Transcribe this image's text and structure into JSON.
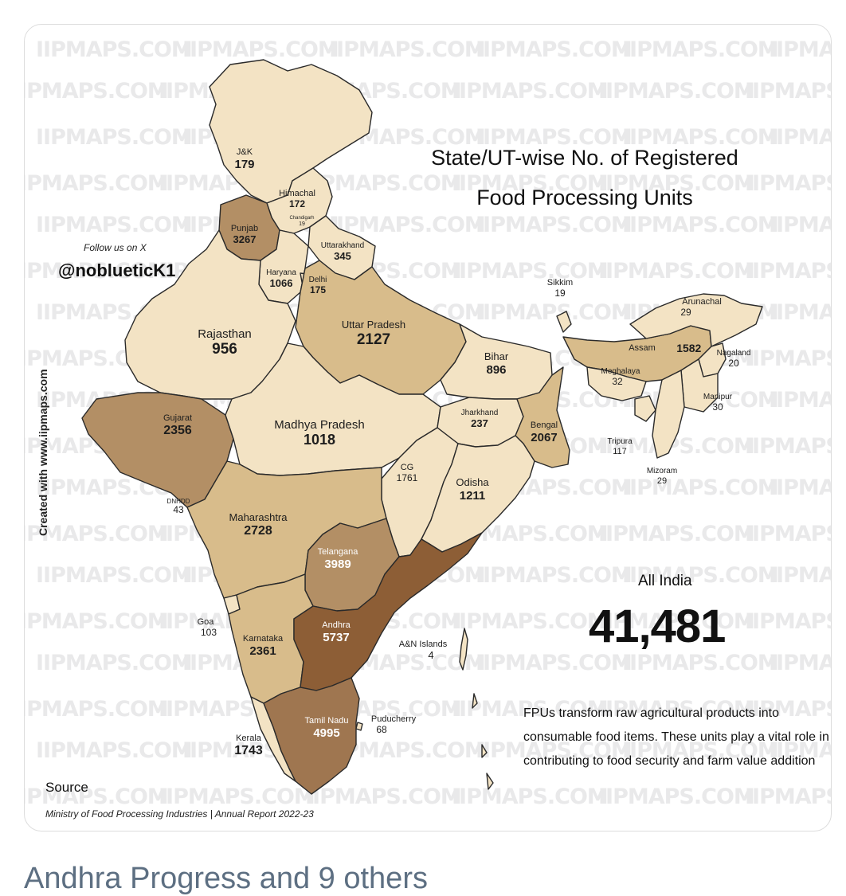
{
  "watermark": "IIPMAPS.COM",
  "title_line1": "State/UT-wise No. of Registered",
  "title_line2": "Food Processing Units",
  "follow_label": "Follow us on X",
  "handle": "@noblueticK1",
  "created_with": "Created with www.iipmaps.com",
  "all_india_label": "All India",
  "all_india_value": "41,481",
  "description": "FPUs transform raw agricultural products into consumable food items. These units play a vital role in contributing to food security and farm value addition",
  "source_label": "Source",
  "source_detail": "Ministry of Food Processing Industries | Annual Report 2022-23",
  "footer_text": "Andhra Progress and 9 others",
  "colors": {
    "lightest": "#f3e3c4",
    "light": "#e5cea2",
    "medium": "#d8bc8b",
    "dark": "#b38f65",
    "darker": "#9f7650",
    "darkest": "#8d5e36",
    "border": "#2a2a2a"
  },
  "states": [
    {
      "name": "J&K",
      "value": "179"
    },
    {
      "name": "Himachal",
      "value": "172"
    },
    {
      "name": "Chandigarh",
      "value": "19"
    },
    {
      "name": "Punjab",
      "value": "3267"
    },
    {
      "name": "Uttarakhand",
      "value": "345"
    },
    {
      "name": "Haryana",
      "value": "1066"
    },
    {
      "name": "Delhi",
      "value": "175"
    },
    {
      "name": "Rajasthan",
      "value": "956"
    },
    {
      "name": "Uttar Pradesh",
      "value": "2127"
    },
    {
      "name": "Sikkim",
      "value": "19"
    },
    {
      "name": "Arunachal",
      "value": "29"
    },
    {
      "name": "Assam",
      "value": "1582"
    },
    {
      "name": "Nagaland",
      "value": "20"
    },
    {
      "name": "Meghalaya",
      "value": "32"
    },
    {
      "name": "Manipur",
      "value": "30"
    },
    {
      "name": "Bihar",
      "value": "896"
    },
    {
      "name": "Jharkhand",
      "value": "237"
    },
    {
      "name": "Bengal",
      "value": "2067"
    },
    {
      "name": "Tripura",
      "value": "117"
    },
    {
      "name": "Mizoram",
      "value": "29"
    },
    {
      "name": "Gujarat",
      "value": "2356"
    },
    {
      "name": "Madhya Pradesh",
      "value": "1018"
    },
    {
      "name": "CG",
      "value": "1761"
    },
    {
      "name": "Odisha",
      "value": "1211"
    },
    {
      "name": "DNHDD",
      "value": "43"
    },
    {
      "name": "Maharashtra",
      "value": "2728"
    },
    {
      "name": "Telangana",
      "value": "3989"
    },
    {
      "name": "Goa",
      "value": "103"
    },
    {
      "name": "Andhra",
      "value": "5737"
    },
    {
      "name": "Karnataka",
      "value": "2361"
    },
    {
      "name": "A&N Islands",
      "value": "4"
    },
    {
      "name": "Tamil Nadu",
      "value": "4995"
    },
    {
      "name": "Puducherry",
      "value": "68"
    },
    {
      "name": "Kerala",
      "value": "1743"
    }
  ]
}
